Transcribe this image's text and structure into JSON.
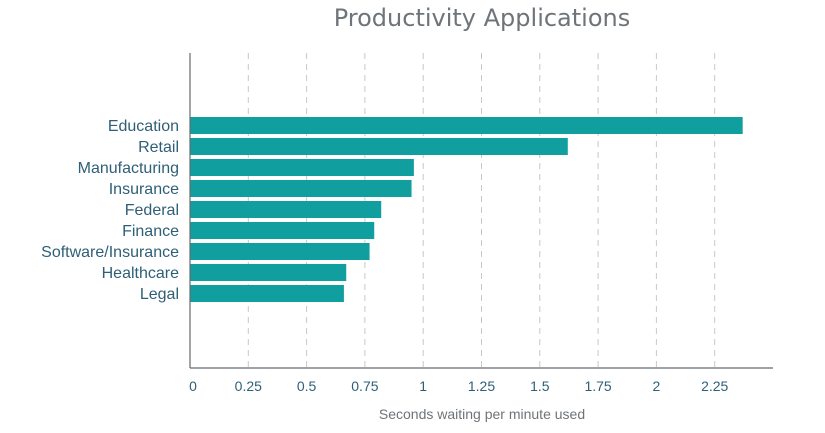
{
  "chart_data": {
    "type": "bar",
    "orientation": "horizontal",
    "title": "Productivity Applications",
    "xlabel": "Seconds waiting per minute used",
    "ylabel": "",
    "categories": [
      "Education",
      "Retail",
      "Manufacturing",
      "Insurance",
      "Federal",
      "Finance",
      "Software/Insurance",
      "Healthcare",
      "Legal"
    ],
    "values": [
      2.37,
      1.62,
      0.96,
      0.95,
      0.82,
      0.79,
      0.77,
      0.67,
      0.66
    ],
    "xlim": [
      0,
      2.5
    ],
    "xticks": [
      "0",
      "0.25",
      "0.5",
      "0.75",
      "1",
      "1.25",
      "1.5",
      "1.75",
      "2",
      "2.25"
    ],
    "grid": "vertical dashed",
    "legend": "none",
    "colors": {
      "bar": "#119e9f",
      "axis": "#666b70",
      "grid": "#c8c8c8",
      "title": "#6f7479",
      "labels": "#2f5f77"
    }
  }
}
